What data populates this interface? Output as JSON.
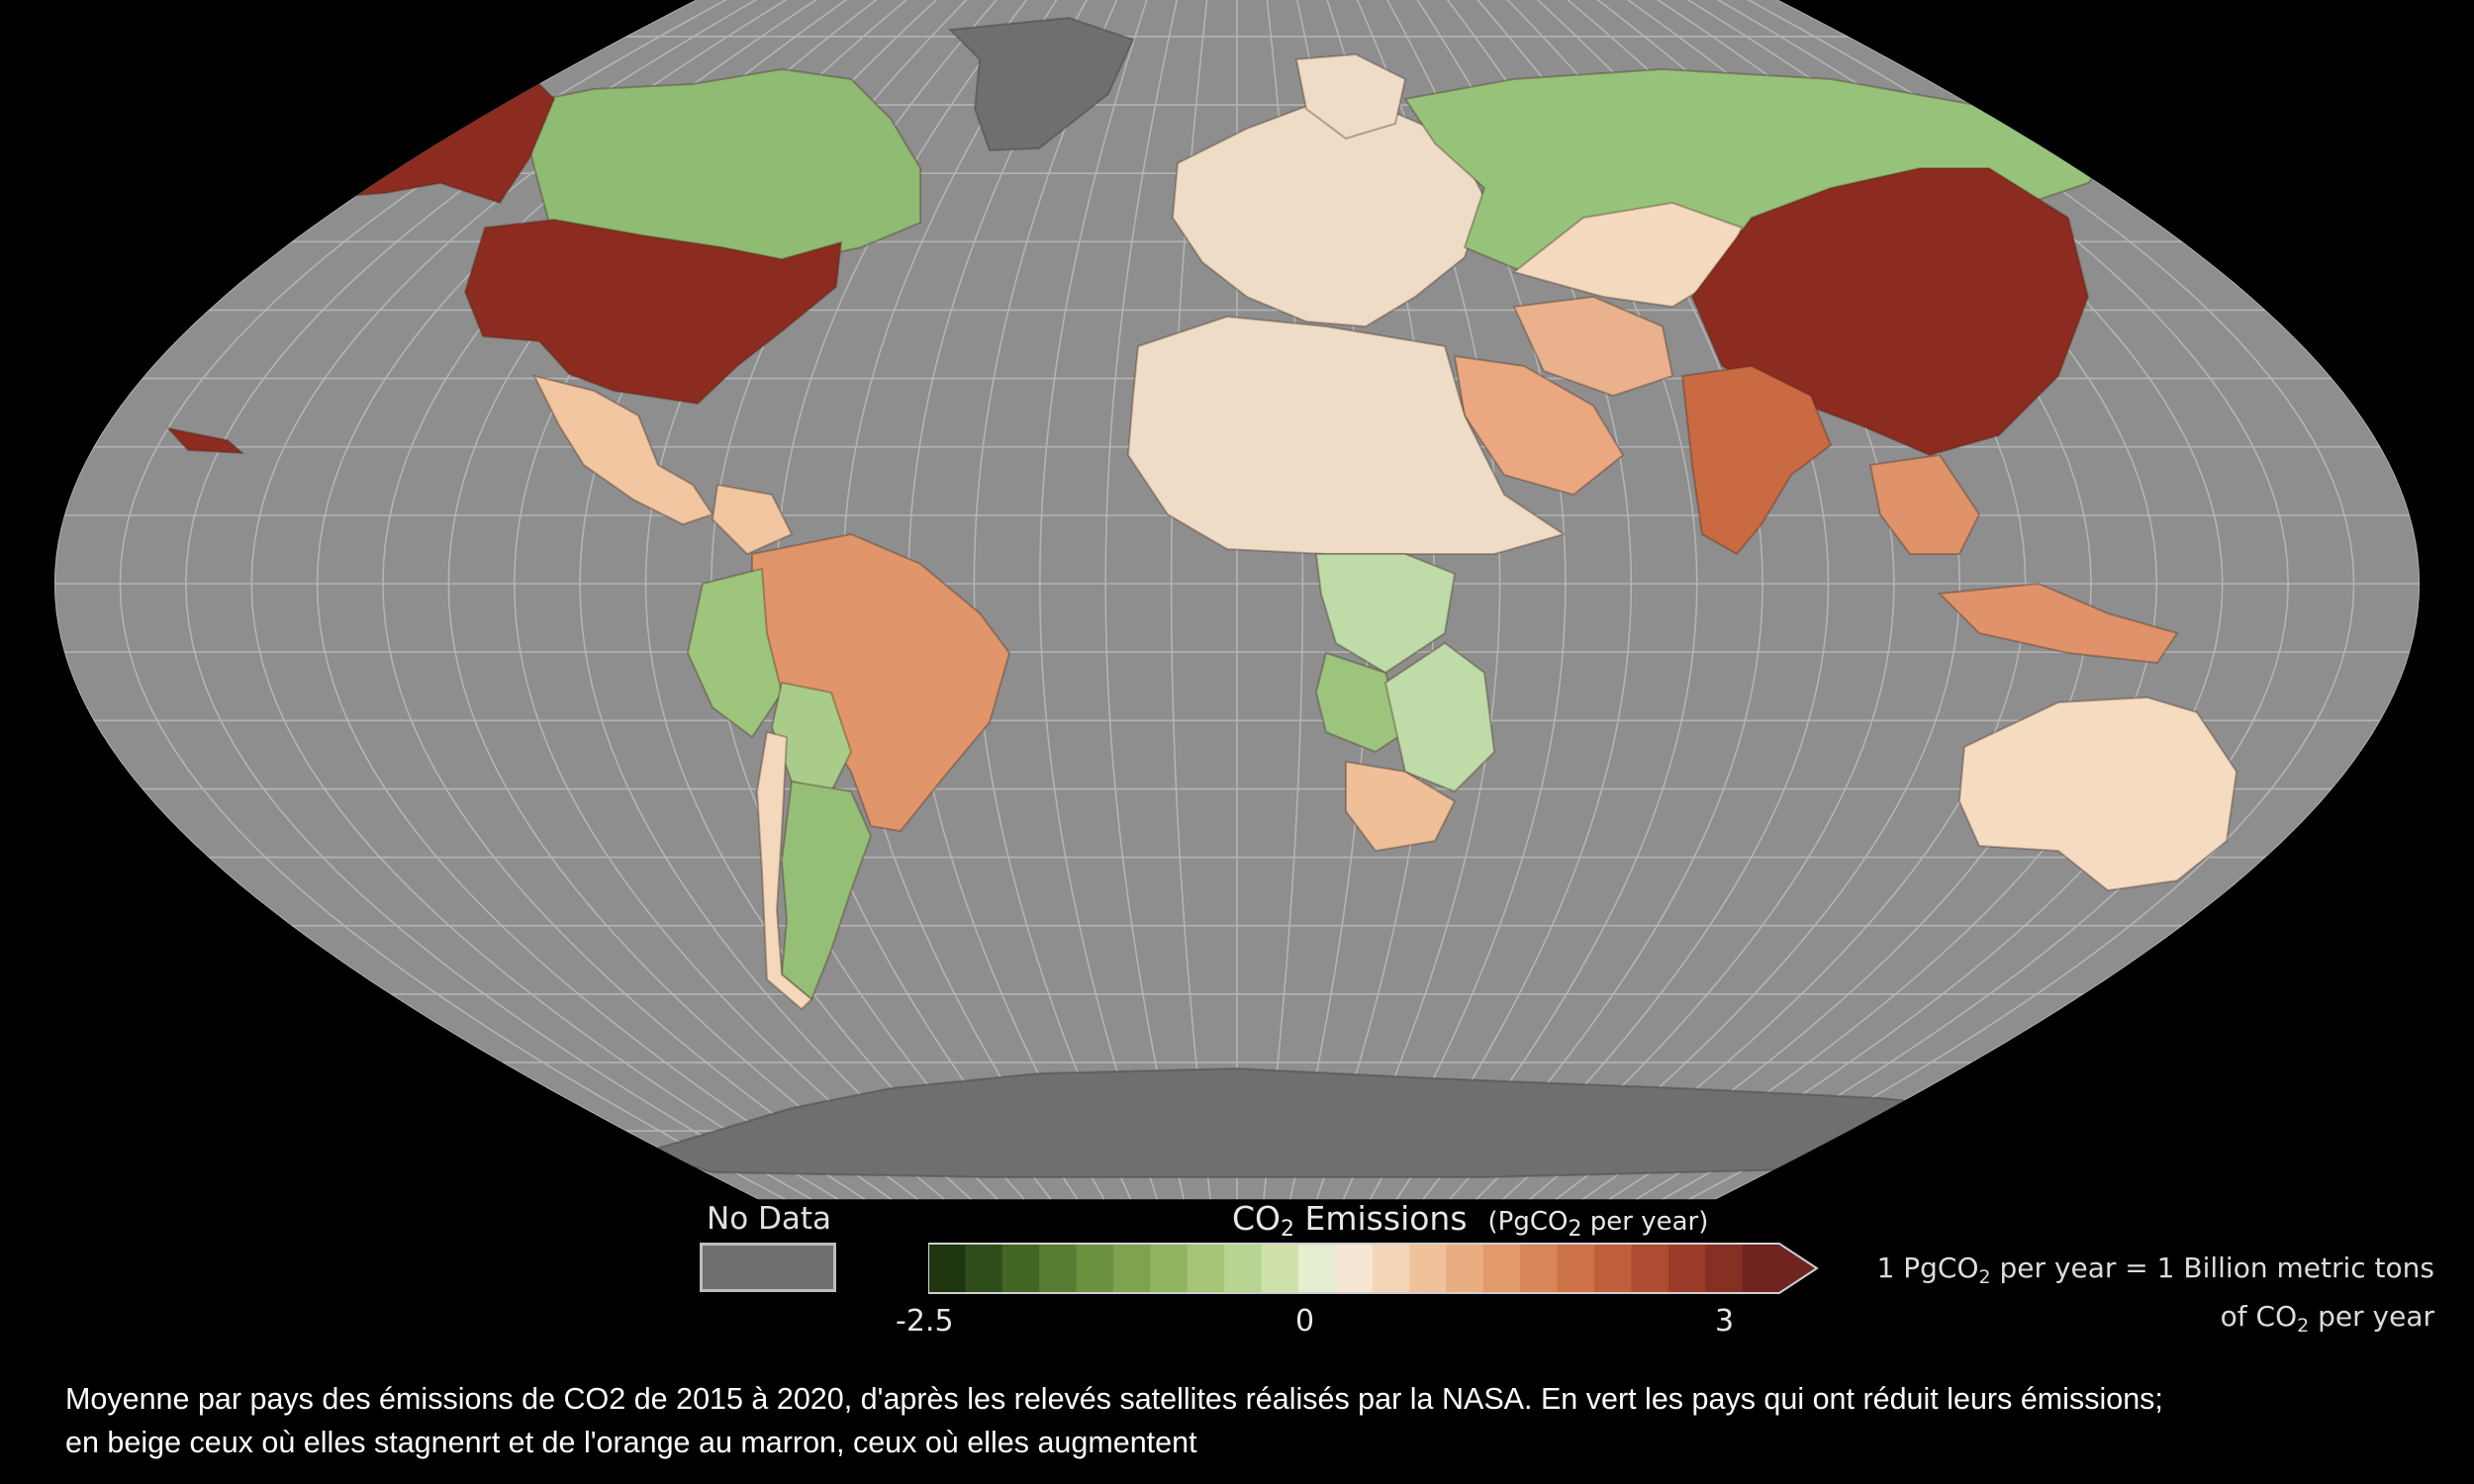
{
  "map": {
    "projection": "robinson",
    "ocean_color": "#8e8e8e",
    "graticule_color": "#b4b4b4",
    "no_data_color": "#6f6f6f",
    "regions": [
      {
        "name": "Alaska",
        "category": "strong-increase",
        "color": "#8c2b1f"
      },
      {
        "name": "Canada",
        "category": "decrease",
        "color": "#8fbb72"
      },
      {
        "name": "United States",
        "category": "strong-increase",
        "color": "#8c2b1f"
      },
      {
        "name": "Mexico",
        "category": "slight-increase",
        "color": "#f1c6a0"
      },
      {
        "name": "Greenland",
        "category": "no-data",
        "color": "#6f6f6f"
      },
      {
        "name": "Brazil",
        "category": "increase",
        "color": "#e1956a"
      },
      {
        "name": "Peru",
        "category": "decrease",
        "color": "#9dc57c"
      },
      {
        "name": "Bolivia",
        "category": "slight-decrease",
        "color": "#a9cc8a"
      },
      {
        "name": "Argentina",
        "category": "decrease",
        "color": "#95bf77"
      },
      {
        "name": "Chile",
        "category": "stable",
        "color": "#f3d8bc"
      },
      {
        "name": "Europe",
        "category": "stable",
        "color": "#efdcc6"
      },
      {
        "name": "Russia",
        "category": "decrease",
        "color": "#97c27a"
      },
      {
        "name": "Kazakhstan",
        "category": "stable",
        "color": "#f3d9bd"
      },
      {
        "name": "China",
        "category": "strong-increase",
        "color": "#8c2b1f"
      },
      {
        "name": "India",
        "category": "increase",
        "color": "#c96a42"
      },
      {
        "name": "Iran",
        "category": "slight-increase",
        "color": "#eab28c"
      },
      {
        "name": "Saudi Arabia",
        "category": "slight-increase",
        "color": "#eaa780"
      },
      {
        "name": "North Africa",
        "category": "stable",
        "color": "#efdcc6"
      },
      {
        "name": "Central Africa",
        "category": "slight-decrease",
        "color": "#bfdba8"
      },
      {
        "name": "Angola",
        "category": "decrease",
        "color": "#9cc47d"
      },
      {
        "name": "South Africa",
        "category": "slight-increase",
        "color": "#efbf98"
      },
      {
        "name": "Southeast Asia",
        "category": "increase",
        "color": "#e0936a"
      },
      {
        "name": "Australia",
        "category": "stable",
        "color": "#f5dcc1"
      },
      {
        "name": "Antarctica",
        "category": "no-data",
        "color": "#6f6f6f"
      }
    ]
  },
  "legend": {
    "title_main": "CO",
    "title_sub": "2",
    "title_rest": " Emissions",
    "unit_pre": "(PgCO",
    "unit_sub": "2",
    "unit_post": " per year)",
    "no_data_label": "No Data",
    "tick_min": "-2.5",
    "tick_mid": "0",
    "tick_max": "3",
    "colors": [
      "#1e3510",
      "#2f4d1b",
      "#426626",
      "#567d32",
      "#6a9140",
      "#7da350",
      "#90b462",
      "#a4c477",
      "#b9d390",
      "#cfe2ac",
      "#e4eed0",
      "#f6e7d4",
      "#f4d6b8",
      "#efc29c",
      "#e9ad82",
      "#e2996c",
      "#d98558",
      "#cd7147",
      "#bf5f3b",
      "#ae4d31",
      "#9a3c29",
      "#853023",
      "#6f2420"
    ],
    "note_line1_pre": "1 PgCO",
    "note_line1_sub": "2",
    "note_line1_post": " per year = 1 Billion metric tons",
    "note_line2_pre": "of CO",
    "note_line2_sub": "2",
    "note_line2_post": " per year"
  },
  "caption": {
    "line1": "Moyenne par pays des émissions de CO2 de 2015 à 2020, d'après les relevés satellites réalisés par la NASA. En vert les pays qui ont réduit leurs émissions;",
    "line2": "en beige ceux où elles stagnenrt et de l'orange au marron, ceux où elles augmentent"
  }
}
